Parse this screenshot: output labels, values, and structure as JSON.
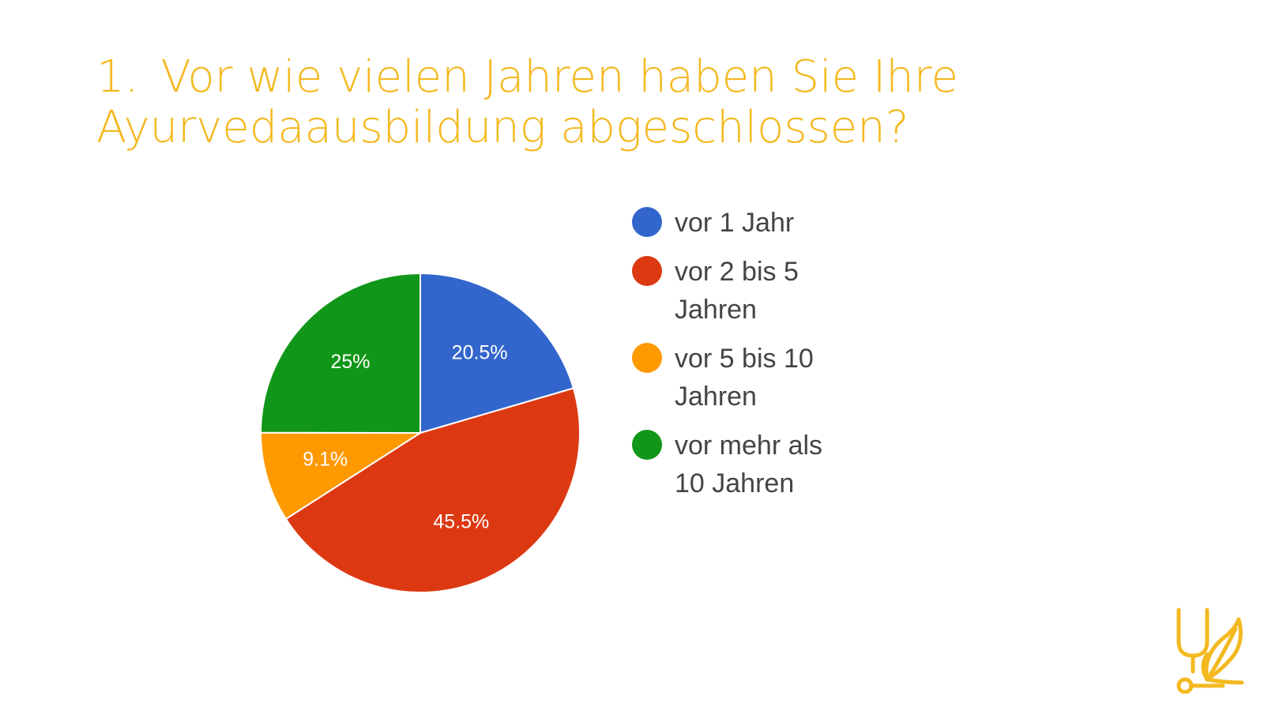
{
  "slide": {
    "number": "1.",
    "title": "Vor wie vielen Jahren haben Sie Ihre Ayurvedaausbildung abgeschlossen?",
    "title_color": "#f4b920",
    "logo_icon": "stethoscope-leaf-icon"
  },
  "chart_data": {
    "type": "pie",
    "title": "1. Vor wie vielen Jahren haben Sie Ihre Ayurvedaausbildung abgeschlossen?",
    "start_angle_deg": 0,
    "direction": "clockwise",
    "legend_position": "right",
    "slices": [
      {
        "label": "vor 1 Jahr",
        "value": 20.5,
        "display": "20.5%",
        "color": "#3366cc"
      },
      {
        "label": "vor 2 bis 5\nJahren",
        "value": 45.5,
        "display": "45.5%",
        "color": "#dc3912"
      },
      {
        "label": "vor 5 bis 10\nJahren",
        "value": 9.1,
        "display": "9.1%",
        "color": "#ff9900"
      },
      {
        "label": "vor mehr als\n10 Jahren",
        "value": 25,
        "display": "25%",
        "color": "#109618"
      }
    ]
  }
}
